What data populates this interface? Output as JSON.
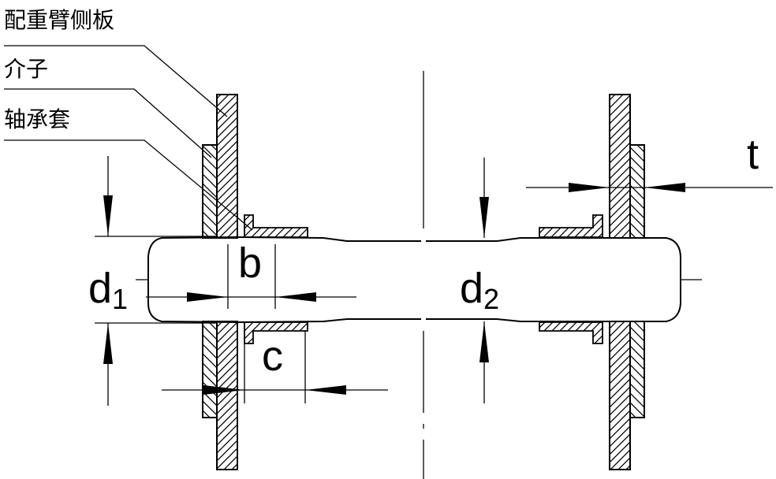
{
  "labels": {
    "counterweight_arm_side_plate": "配重臂侧板",
    "intermediate_piece": "介子",
    "bearing_sleeve": "轴承套"
  },
  "dimensions": {
    "d1_letter": "d",
    "d1_sub": "1",
    "d2_letter": "d",
    "d2_sub": "2",
    "b": "b",
    "c": "c",
    "t": "t"
  },
  "colors": {
    "line": "#000000",
    "background": "#ffffff"
  }
}
